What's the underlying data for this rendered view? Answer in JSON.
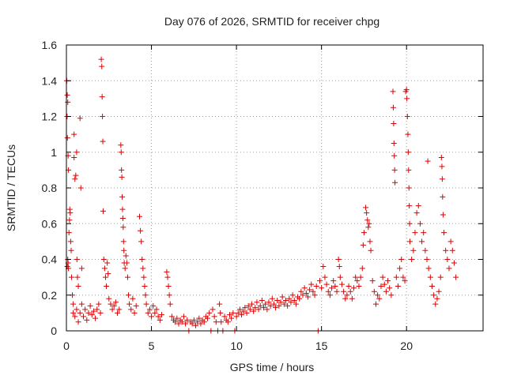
{
  "chart_data": {
    "type": "scatter",
    "title": "Day 076 of 2026, SRMTID for receiver chpg",
    "xlabel": "GPS time / hours",
    "ylabel": "SRMTID / TECUs",
    "xlim": [
      0,
      24.5
    ],
    "ylim": [
      0,
      1.6
    ],
    "xticks": [
      0,
      5,
      10,
      15,
      20
    ],
    "xtick_labels": [
      "0",
      "5",
      "10",
      "15",
      "20"
    ],
    "yticks": [
      0,
      0.2,
      0.4,
      0.6,
      0.8,
      1.0,
      1.2,
      1.4,
      1.6
    ],
    "ytick_labels": [
      "0",
      "0.2",
      "0.4",
      "0.6",
      "0.8",
      "1",
      "1.2",
      "1.4",
      "1.6"
    ],
    "grid": true,
    "marker": "plus",
    "color": "#e00000",
    "series": [
      {
        "name": "SRMTID",
        "points": [
          [
            0.02,
            1.4
          ],
          [
            0.05,
            1.32
          ],
          [
            0.08,
            1.28
          ],
          [
            0.04,
            1.2
          ],
          [
            0.06,
            1.08
          ],
          [
            0.1,
            0.98
          ],
          [
            0.12,
            0.9
          ],
          [
            0.05,
            0.36
          ],
          [
            0.08,
            0.4
          ],
          [
            0.1,
            0.38
          ],
          [
            0.12,
            0.35
          ],
          [
            0.15,
            0.55
          ],
          [
            0.18,
            0.62
          ],
          [
            0.2,
            0.68
          ],
          [
            0.22,
            0.66
          ],
          [
            0.25,
            0.5
          ],
          [
            0.28,
            0.45
          ],
          [
            0.3,
            0.3
          ],
          [
            0.35,
            0.2
          ],
          [
            0.4,
            0.15
          ],
          [
            0.45,
            1.1
          ],
          [
            0.45,
            0.97
          ],
          [
            0.5,
            0.85
          ],
          [
            0.55,
            0.87
          ],
          [
            0.6,
            1.0
          ],
          [
            0.62,
            0.4
          ],
          [
            0.65,
            0.3
          ],
          [
            0.7,
            0.25
          ],
          [
            0.8,
            1.19
          ],
          [
            0.85,
            0.8
          ],
          [
            0.9,
            0.35
          ],
          [
            0.4,
            0.1
          ],
          [
            0.5,
            0.08
          ],
          [
            0.6,
            0.12
          ],
          [
            0.7,
            0.05
          ],
          [
            0.8,
            0.1
          ],
          [
            0.9,
            0.15
          ],
          [
            1.0,
            0.08
          ],
          [
            1.1,
            0.12
          ],
          [
            1.2,
            0.06
          ],
          [
            1.3,
            0.1
          ],
          [
            1.4,
            0.14
          ],
          [
            1.5,
            0.09
          ],
          [
            1.6,
            0.11
          ],
          [
            1.7,
            0.07
          ],
          [
            1.8,
            0.12
          ],
          [
            1.9,
            0.15
          ],
          [
            2.0,
            0.1
          ],
          [
            2.05,
            1.52
          ],
          [
            2.08,
            1.48
          ],
          [
            2.1,
            1.31
          ],
          [
            2.12,
            1.2
          ],
          [
            2.14,
            1.06
          ],
          [
            2.16,
            0.67
          ],
          [
            2.2,
            0.4
          ],
          [
            2.25,
            0.35
          ],
          [
            2.3,
            0.3
          ],
          [
            2.35,
            0.25
          ],
          [
            2.4,
            0.38
          ],
          [
            2.45,
            0.32
          ],
          [
            2.5,
            0.18
          ],
          [
            2.6,
            0.15
          ],
          [
            2.7,
            0.12
          ],
          [
            2.8,
            0.14
          ],
          [
            2.9,
            0.16
          ],
          [
            3.0,
            0.1
          ],
          [
            3.1,
            0.12
          ],
          [
            3.2,
            1.04
          ],
          [
            3.22,
            1.0
          ],
          [
            3.24,
            0.9
          ],
          [
            3.26,
            0.86
          ],
          [
            3.28,
            0.75
          ],
          [
            3.3,
            0.68
          ],
          [
            3.32,
            0.63
          ],
          [
            3.34,
            0.58
          ],
          [
            3.36,
            0.5
          ],
          [
            3.38,
            0.45
          ],
          [
            3.4,
            0.38
          ],
          [
            3.45,
            0.35
          ],
          [
            3.5,
            0.42
          ],
          [
            3.55,
            0.38
          ],
          [
            3.6,
            0.3
          ],
          [
            3.65,
            0.2
          ],
          [
            3.7,
            0.15
          ],
          [
            3.8,
            0.12
          ],
          [
            3.9,
            0.18
          ],
          [
            4.0,
            0.1
          ],
          [
            4.1,
            0.14
          ],
          [
            4.3,
            0.64
          ],
          [
            4.35,
            0.56
          ],
          [
            4.4,
            0.5
          ],
          [
            4.45,
            0.4
          ],
          [
            4.5,
            0.35
          ],
          [
            4.55,
            0.3
          ],
          [
            4.6,
            0.25
          ],
          [
            4.65,
            0.2
          ],
          [
            4.7,
            0.15
          ],
          [
            4.8,
            0.1
          ],
          [
            4.9,
            0.12
          ],
          [
            5.0,
            0.08
          ],
          [
            5.1,
            0.14
          ],
          [
            5.2,
            0.1
          ],
          [
            5.3,
            0.12
          ],
          [
            5.4,
            0.08
          ],
          [
            5.5,
            0.06
          ],
          [
            5.6,
            0.09
          ],
          [
            5.9,
            0.33
          ],
          [
            5.95,
            0.3
          ],
          [
            6.0,
            0.25
          ],
          [
            6.05,
            0.2
          ],
          [
            6.1,
            0.15
          ],
          [
            6.2,
            0.08
          ],
          [
            6.3,
            0.06
          ],
          [
            6.4,
            0.05
          ],
          [
            6.5,
            0.07
          ],
          [
            6.6,
            0.04
          ],
          [
            6.7,
            0.06
          ],
          [
            6.8,
            0.05
          ],
          [
            6.9,
            0.08
          ],
          [
            7.0,
            0.04
          ],
          [
            7.1,
            0.06
          ],
          [
            7.2,
            0.0
          ],
          [
            7.3,
            0.05
          ],
          [
            7.4,
            0.04
          ],
          [
            7.5,
            0.06
          ],
          [
            7.6,
            0.03
          ],
          [
            7.7,
            0.05
          ],
          [
            7.8,
            0.07
          ],
          [
            7.9,
            0.04
          ],
          [
            8.0,
            0.06
          ],
          [
            8.1,
            0.05
          ],
          [
            8.2,
            0.08
          ],
          [
            8.3,
            0.07
          ],
          [
            8.4,
            0.1
          ],
          [
            8.5,
            0.0
          ],
          [
            8.6,
            0.12
          ],
          [
            8.7,
            0.08
          ],
          [
            8.8,
            0.05
          ],
          [
            8.9,
            0.0
          ],
          [
            9.0,
            0.15
          ],
          [
            9.05,
            0.1
          ],
          [
            9.1,
            0.05
          ],
          [
            9.2,
            0.0
          ],
          [
            9.3,
            0.08
          ],
          [
            9.4,
            0.06
          ],
          [
            9.5,
            0.05
          ],
          [
            9.6,
            0.09
          ],
          [
            9.7,
            0.07
          ],
          [
            9.8,
            0.1
          ],
          [
            9.9,
            0.0
          ],
          [
            10.0,
            0.08
          ],
          [
            10.1,
            0.1
          ],
          [
            10.2,
            0.12
          ],
          [
            10.3,
            0.09
          ],
          [
            10.4,
            0.11
          ],
          [
            10.5,
            0.13
          ],
          [
            10.6,
            0.1
          ],
          [
            10.7,
            0.14
          ],
          [
            10.8,
            0.12
          ],
          [
            10.9,
            0.15
          ],
          [
            11.0,
            0.11
          ],
          [
            11.1,
            0.13
          ],
          [
            11.2,
            0.16
          ],
          [
            11.3,
            0.12
          ],
          [
            11.4,
            0.14
          ],
          [
            11.5,
            0.17
          ],
          [
            11.6,
            0.13
          ],
          [
            11.7,
            0.15
          ],
          [
            11.8,
            0.12
          ],
          [
            11.9,
            0.16
          ],
          [
            12.0,
            0.14
          ],
          [
            12.1,
            0.18
          ],
          [
            12.2,
            0.15
          ],
          [
            12.3,
            0.13
          ],
          [
            12.4,
            0.17
          ],
          [
            12.5,
            0.14
          ],
          [
            12.6,
            0.16
          ],
          [
            12.7,
            0.19
          ],
          [
            12.8,
            0.15
          ],
          [
            12.9,
            0.17
          ],
          [
            13.0,
            0.14
          ],
          [
            13.1,
            0.18
          ],
          [
            13.2,
            0.16
          ],
          [
            13.3,
            0.2
          ],
          [
            13.4,
            0.17
          ],
          [
            13.5,
            0.15
          ],
          [
            13.6,
            0.19
          ],
          [
            13.7,
            0.18
          ],
          [
            13.8,
            0.22
          ],
          [
            13.9,
            0.2
          ],
          [
            14.0,
            0.24
          ],
          [
            14.1,
            0.21
          ],
          [
            14.2,
            0.19
          ],
          [
            14.3,
            0.23
          ],
          [
            14.4,
            0.26
          ],
          [
            14.5,
            0.22
          ],
          [
            14.6,
            0.2
          ],
          [
            14.7,
            0.25
          ],
          [
            14.8,
            0.0
          ],
          [
            14.9,
            0.28
          ],
          [
            15.0,
            0.24
          ],
          [
            15.1,
            0.36
          ],
          [
            15.2,
            0.3
          ],
          [
            15.3,
            0.26
          ],
          [
            15.4,
            0.22
          ],
          [
            15.5,
            0.2
          ],
          [
            15.6,
            0.24
          ],
          [
            15.7,
            0.28
          ],
          [
            15.8,
            0.25
          ],
          [
            15.9,
            0.22
          ],
          [
            16.0,
            0.4
          ],
          [
            16.05,
            0.36
          ],
          [
            16.1,
            0.3
          ],
          [
            16.2,
            0.26
          ],
          [
            16.3,
            0.22
          ],
          [
            16.4,
            0.18
          ],
          [
            16.5,
            0.2
          ],
          [
            16.6,
            0.25
          ],
          [
            16.7,
            0.22
          ],
          [
            16.8,
            0.18
          ],
          [
            16.9,
            0.24
          ],
          [
            17.0,
            0.3
          ],
          [
            17.1,
            0.28
          ],
          [
            17.2,
            0.25
          ],
          [
            17.3,
            0.3
          ],
          [
            17.4,
            0.35
          ],
          [
            17.45,
            0.48
          ],
          [
            17.5,
            0.55
          ],
          [
            17.6,
            0.69
          ],
          [
            17.65,
            0.66
          ],
          [
            17.7,
            0.62
          ],
          [
            17.75,
            0.58
          ],
          [
            17.8,
            0.6
          ],
          [
            17.85,
            0.5
          ],
          [
            17.9,
            0.45
          ],
          [
            18.0,
            0.28
          ],
          [
            18.1,
            0.22
          ],
          [
            18.2,
            0.15
          ],
          [
            18.3,
            0.2
          ],
          [
            18.4,
            0.18
          ],
          [
            18.5,
            0.25
          ],
          [
            18.6,
            0.3
          ],
          [
            18.7,
            0.26
          ],
          [
            18.8,
            0.22
          ],
          [
            18.9,
            0.28
          ],
          [
            19.0,
            0.24
          ],
          [
            19.1,
            0.2
          ],
          [
            19.2,
            1.34
          ],
          [
            19.22,
            1.25
          ],
          [
            19.24,
            1.16
          ],
          [
            19.26,
            1.05
          ],
          [
            19.28,
            0.98
          ],
          [
            19.3,
            0.9
          ],
          [
            19.32,
            0.83
          ],
          [
            19.4,
            0.3
          ],
          [
            19.5,
            0.25
          ],
          [
            19.6,
            0.35
          ],
          [
            19.7,
            0.4
          ],
          [
            19.8,
            0.3
          ],
          [
            19.9,
            0.28
          ],
          [
            19.95,
            1.34
          ],
          [
            20.0,
            1.35
          ],
          [
            20.02,
            1.3
          ],
          [
            20.05,
            1.2
          ],
          [
            20.08,
            1.1
          ],
          [
            20.1,
            1.0
          ],
          [
            20.12,
            0.9
          ],
          [
            20.14,
            0.8
          ],
          [
            20.16,
            0.7
          ],
          [
            20.18,
            0.6
          ],
          [
            20.2,
            0.5
          ],
          [
            20.3,
            0.4
          ],
          [
            20.4,
            0.45
          ],
          [
            20.5,
            0.55
          ],
          [
            20.6,
            0.66
          ],
          [
            20.7,
            0.7
          ],
          [
            20.8,
            0.6
          ],
          [
            20.9,
            0.5
          ],
          [
            21.0,
            0.55
          ],
          [
            21.1,
            0.45
          ],
          [
            21.2,
            0.4
          ],
          [
            21.25,
            0.95
          ],
          [
            21.3,
            0.35
          ],
          [
            21.4,
            0.3
          ],
          [
            21.5,
            0.25
          ],
          [
            21.6,
            0.2
          ],
          [
            21.7,
            0.15
          ],
          [
            21.8,
            0.18
          ],
          [
            21.9,
            0.22
          ],
          [
            22.0,
            0.3
          ],
          [
            22.05,
            0.97
          ],
          [
            22.08,
            0.92
          ],
          [
            22.1,
            0.85
          ],
          [
            22.12,
            0.75
          ],
          [
            22.15,
            0.65
          ],
          [
            22.2,
            0.55
          ],
          [
            22.3,
            0.45
          ],
          [
            22.4,
            0.4
          ],
          [
            22.5,
            0.35
          ],
          [
            22.6,
            0.5
          ],
          [
            22.7,
            0.45
          ],
          [
            22.8,
            0.38
          ],
          [
            22.9,
            0.3
          ]
        ]
      }
    ]
  }
}
